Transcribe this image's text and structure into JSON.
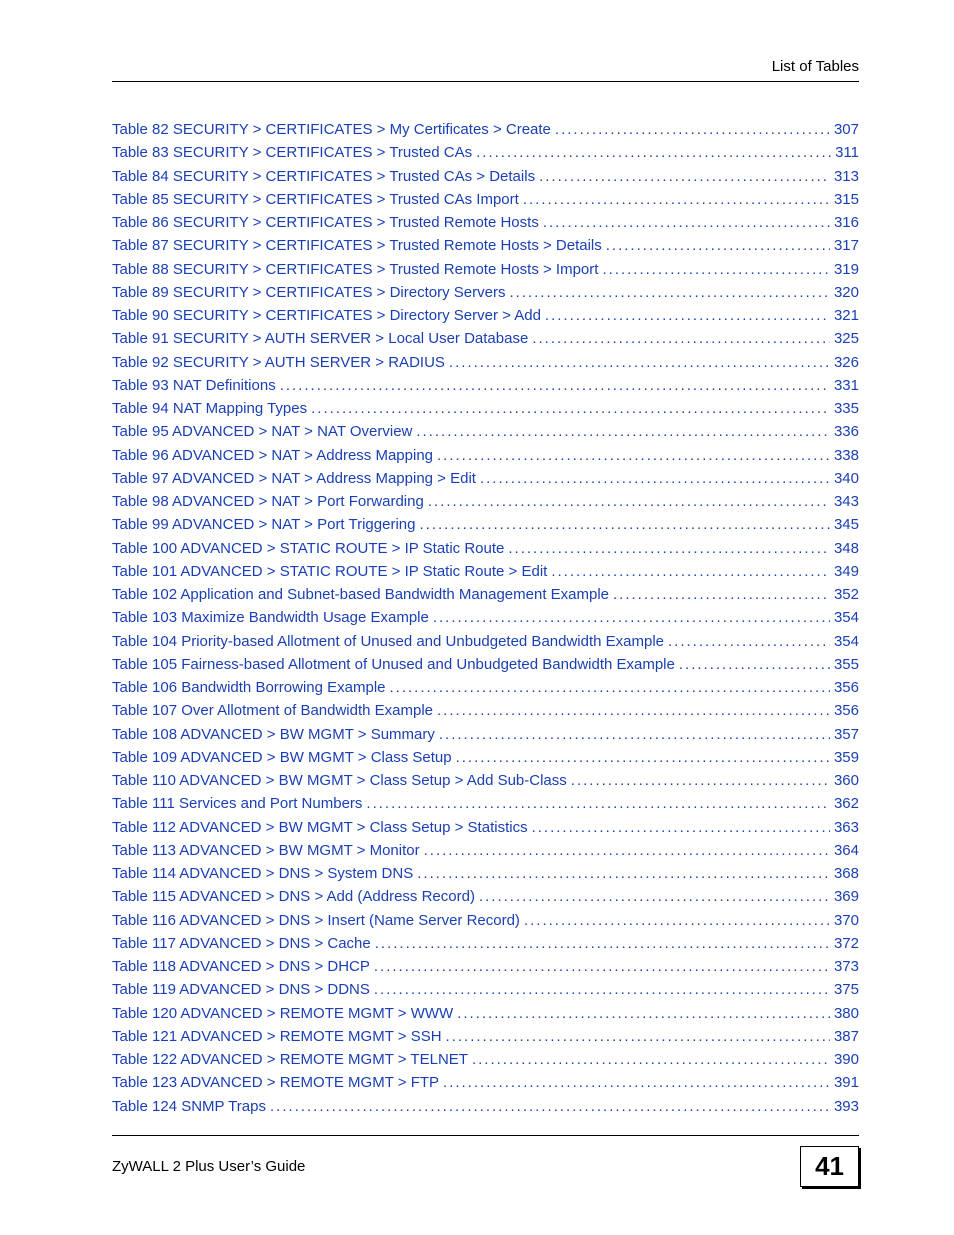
{
  "header_title": "List of Tables",
  "link_color": "#1a3fb5",
  "text_color": "#000000",
  "font_size_body": 15,
  "font_size_pagenum": 26,
  "font_family": "Arial, Helvetica, sans-serif",
  "toc": [
    {
      "label": "Table 82 SECURITY > CERTIFICATES > My Certificates > Create",
      "page": "307"
    },
    {
      "label": "Table 83 SECURITY > CERTIFICATES > Trusted CAs",
      "page": "311"
    },
    {
      "label": "Table 84 SECURITY > CERTIFICATES > Trusted CAs > Details",
      "page": "313"
    },
    {
      "label": "Table 85 SECURITY > CERTIFICATES > Trusted CAs Import",
      "page": "315"
    },
    {
      "label": "Table 86 SECURITY > CERTIFICATES > Trusted Remote Hosts",
      "page": "316"
    },
    {
      "label": "Table 87 SECURITY > CERTIFICATES > Trusted Remote Hosts > Details",
      "page": "317"
    },
    {
      "label": "Table 88 SECURITY > CERTIFICATES > Trusted Remote Hosts > Import",
      "page": "319"
    },
    {
      "label": "Table 89 SECURITY > CERTIFICATES > Directory Servers",
      "page": "320"
    },
    {
      "label": "Table 90 SECURITY > CERTIFICATES > Directory Server > Add",
      "page": "321"
    },
    {
      "label": "Table 91 SECURITY > AUTH SERVER > Local User Database",
      "page": "325"
    },
    {
      "label": "Table 92 SECURITY > AUTH SERVER > RADIUS",
      "page": "326"
    },
    {
      "label": "Table 93 NAT Definitions",
      "page": "331"
    },
    {
      "label": "Table 94 NAT Mapping Types",
      "page": "335"
    },
    {
      "label": "Table 95 ADVANCED > NAT > NAT Overview",
      "page": "336"
    },
    {
      "label": "Table 96 ADVANCED > NAT > Address Mapping",
      "page": "338"
    },
    {
      "label": "Table 97 ADVANCED > NAT > Address Mapping > Edit",
      "page": "340"
    },
    {
      "label": "Table 98 ADVANCED > NAT > Port Forwarding",
      "page": "343"
    },
    {
      "label": "Table 99 ADVANCED > NAT > Port Triggering",
      "page": "345"
    },
    {
      "label": "Table 100 ADVANCED > STATIC ROUTE > IP Static Route",
      "page": "348"
    },
    {
      "label": "Table 101 ADVANCED > STATIC ROUTE > IP Static Route > Edit",
      "page": "349"
    },
    {
      "label": "Table 102 Application and Subnet-based Bandwidth Management Example",
      "page": "352"
    },
    {
      "label": "Table 103 Maximize Bandwidth Usage Example",
      "page": "354"
    },
    {
      "label": "Table 104 Priority-based Allotment of Unused and Unbudgeted Bandwidth Example",
      "page": "354"
    },
    {
      "label": "Table 105 Fairness-based Allotment of Unused and Unbudgeted Bandwidth Example",
      "page": "355"
    },
    {
      "label": "Table 106 Bandwidth Borrowing Example",
      "page": "356"
    },
    {
      "label": "Table 107 Over Allotment of Bandwidth Example",
      "page": "356"
    },
    {
      "label": "Table 108 ADVANCED > BW MGMT > Summary",
      "page": "357"
    },
    {
      "label": "Table 109 ADVANCED > BW MGMT > Class Setup",
      "page": "359"
    },
    {
      "label": "Table 110 ADVANCED > BW MGMT > Class Setup > Add Sub-Class",
      "page": "360"
    },
    {
      "label": "Table 111 Services and Port Numbers",
      "page": "362"
    },
    {
      "label": "Table 112 ADVANCED > BW MGMT > Class Setup > Statistics",
      "page": "363"
    },
    {
      "label": "Table 113 ADVANCED > BW MGMT > Monitor",
      "page": "364"
    },
    {
      "label": "Table 114 ADVANCED > DNS > System DNS",
      "page": "368"
    },
    {
      "label": "Table 115 ADVANCED > DNS > Add (Address Record)",
      "page": "369"
    },
    {
      "label": "Table 116 ADVANCED > DNS > Insert (Name Server Record)",
      "page": "370"
    },
    {
      "label": "Table 117 ADVANCED > DNS > Cache",
      "page": "372"
    },
    {
      "label": "Table 118 ADVANCED > DNS > DHCP",
      "page": "373"
    },
    {
      "label": "Table 119 ADVANCED > DNS > DDNS",
      "page": "375"
    },
    {
      "label": "Table 120 ADVANCED > REMOTE MGMT > WWW",
      "page": "380"
    },
    {
      "label": "Table 121 ADVANCED > REMOTE MGMT > SSH",
      "page": "387"
    },
    {
      "label": "Table 122 ADVANCED > REMOTE MGMT > TELNET",
      "page": "390"
    },
    {
      "label": "Table 123 ADVANCED > REMOTE MGMT > FTP",
      "page": "391"
    },
    {
      "label": "Table 124 SNMP Traps",
      "page": "393"
    }
  ],
  "footer_text": "ZyWALL 2 Plus User’s Guide",
  "page_number": "41"
}
